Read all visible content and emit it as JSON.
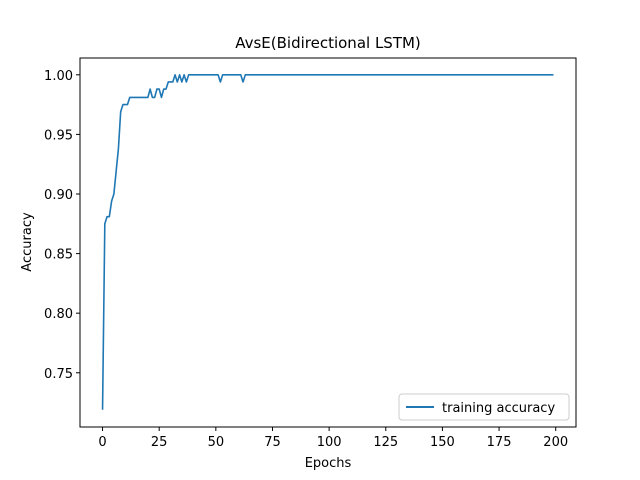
{
  "chart_data": {
    "type": "line",
    "title": "AvsE(Bidirectional LSTM)",
    "xlabel": "Epochs",
    "ylabel": "Accuracy",
    "xlim": [
      -9.95,
      208.95
    ],
    "ylim": [
      0.7045,
      1.0141
    ],
    "xticks": [
      0,
      25,
      50,
      75,
      100,
      125,
      150,
      175,
      200
    ],
    "yticks": [
      0.75,
      0.8,
      0.85,
      0.9,
      0.95,
      1.0
    ],
    "ytick_labels": [
      "0.75",
      "0.80",
      "0.85",
      "0.90",
      "0.95",
      "1.00"
    ],
    "grid": false,
    "legend_position": "lower-right",
    "series": [
      {
        "name": "training accuracy",
        "color": "#1f77b4",
        "points": [
          [
            0,
            0.719
          ],
          [
            1,
            0.875
          ],
          [
            2,
            0.881
          ],
          [
            3,
            0.881
          ],
          [
            4,
            0.894
          ],
          [
            5,
            0.9
          ],
          [
            6,
            0.919
          ],
          [
            7,
            0.938
          ],
          [
            8,
            0.969
          ],
          [
            9,
            0.975
          ],
          [
            10,
            0.975
          ],
          [
            11,
            0.975
          ],
          [
            12,
            0.981
          ],
          [
            13,
            0.981
          ],
          [
            14,
            0.981
          ],
          [
            15,
            0.981
          ],
          [
            16,
            0.981
          ],
          [
            17,
            0.981
          ],
          [
            18,
            0.981
          ],
          [
            19,
            0.981
          ],
          [
            20,
            0.981
          ],
          [
            21,
            0.988
          ],
          [
            22,
            0.981
          ],
          [
            23,
            0.981
          ],
          [
            24,
            0.988
          ],
          [
            25,
            0.988
          ],
          [
            26,
            0.981
          ],
          [
            27,
            0.988
          ],
          [
            28,
            0.988
          ],
          [
            29,
            0.994
          ],
          [
            30,
            0.994
          ],
          [
            31,
            0.994
          ],
          [
            32,
            1.0
          ],
          [
            33,
            0.994
          ],
          [
            34,
            1.0
          ],
          [
            35,
            0.994
          ],
          [
            36,
            1.0
          ],
          [
            37,
            0.994
          ],
          [
            38,
            1.0
          ],
          [
            39,
            1.0
          ],
          [
            40,
            1.0
          ],
          [
            45,
            1.0
          ],
          [
            50,
            1.0
          ],
          [
            51,
            1.0
          ],
          [
            52,
            0.994
          ],
          [
            53,
            1.0
          ],
          [
            55,
            1.0
          ],
          [
            60,
            1.0
          ],
          [
            61,
            1.0
          ],
          [
            62,
            0.994
          ],
          [
            63,
            1.0
          ],
          [
            70,
            1.0
          ],
          [
            100,
            1.0
          ],
          [
            150,
            1.0
          ],
          [
            199,
            1.0
          ]
        ]
      }
    ]
  }
}
